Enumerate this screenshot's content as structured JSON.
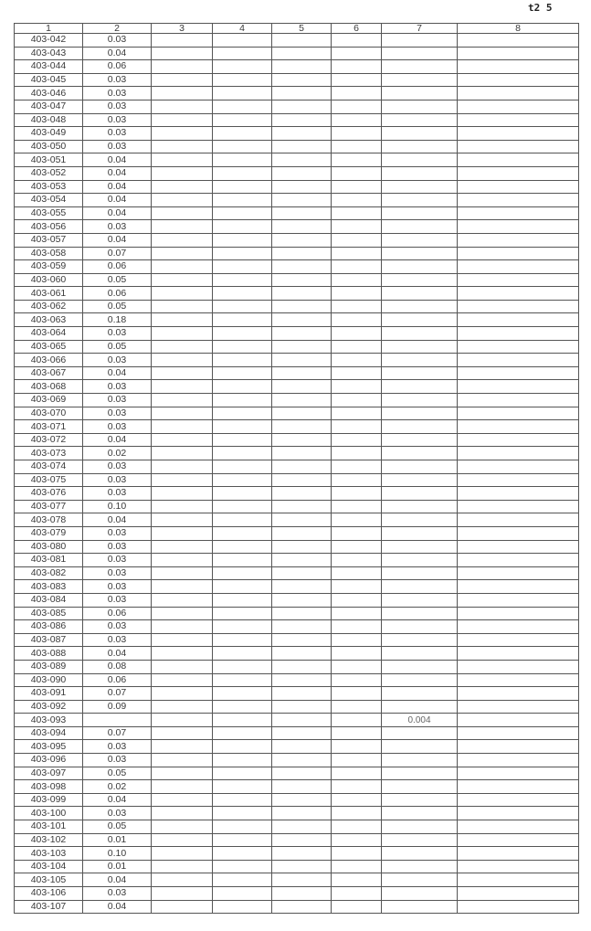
{
  "page_mark": "t2 5",
  "columns": [
    "1",
    "2",
    "3",
    "4",
    "5",
    "6",
    "7",
    "8"
  ],
  "rows": [
    [
      "403-042",
      "0.03",
      ""
    ],
    [
      "403-043",
      "0.04",
      ""
    ],
    [
      "403-044",
      "0.06",
      ""
    ],
    [
      "403-045",
      "0.03",
      ""
    ],
    [
      "403-046",
      "0.03",
      ""
    ],
    [
      "403-047",
      "0.03",
      ""
    ],
    [
      "403-048",
      "0.03",
      ""
    ],
    [
      "403-049",
      "0.03",
      ""
    ],
    [
      "403-050",
      "0.03",
      ""
    ],
    [
      "403-051",
      "0.04",
      ""
    ],
    [
      "403-052",
      "0.04",
      ""
    ],
    [
      "403-053",
      "0.04",
      ""
    ],
    [
      "403-054",
      "0.04",
      ""
    ],
    [
      "403-055",
      "0.04",
      ""
    ],
    [
      "403-056",
      "0.03",
      ""
    ],
    [
      "403-057",
      "0.04",
      ""
    ],
    [
      "403-058",
      "0.07",
      ""
    ],
    [
      "403-059",
      "0.06",
      ""
    ],
    [
      "403-060",
      "0.05",
      ""
    ],
    [
      "403-061",
      "0.06",
      ""
    ],
    [
      "403-062",
      "0.05",
      ""
    ],
    [
      "403-063",
      "0.18",
      ""
    ],
    [
      "403-064",
      "0.03",
      ""
    ],
    [
      "403-065",
      "0.05",
      ""
    ],
    [
      "403-066",
      "0.03",
      ""
    ],
    [
      "403-067",
      "0.04",
      ""
    ],
    [
      "403-068",
      "0.03",
      ""
    ],
    [
      "403-069",
      "0.03",
      ""
    ],
    [
      "403-070",
      "0.03",
      ""
    ],
    [
      "403-071",
      "0.03",
      ""
    ],
    [
      "403-072",
      "0.04",
      ""
    ],
    [
      "403-073",
      "0.02",
      ""
    ],
    [
      "403-074",
      "0.03",
      ""
    ],
    [
      "403-075",
      "0.03",
      ""
    ],
    [
      "403-076",
      "0.03",
      ""
    ],
    [
      "403-077",
      "0.10",
      ""
    ],
    [
      "403-078",
      "0.04",
      ""
    ],
    [
      "403-079",
      "0.03",
      ""
    ],
    [
      "403-080",
      "0.03",
      ""
    ],
    [
      "403-081",
      "0.03",
      ""
    ],
    [
      "403-082",
      "0.03",
      ""
    ],
    [
      "403-083",
      "0.03",
      ""
    ],
    [
      "403-084",
      "0.03",
      ""
    ],
    [
      "403-085",
      "0.06",
      ""
    ],
    [
      "403-086",
      "0.03",
      ""
    ],
    [
      "403-087",
      "0.03",
      ""
    ],
    [
      "403-088",
      "0.04",
      ""
    ],
    [
      "403-089",
      "0.08",
      ""
    ],
    [
      "403-090",
      "0.06",
      ""
    ],
    [
      "403-091",
      "0.07",
      ""
    ],
    [
      "403-092",
      "0.09",
      ""
    ],
    [
      "403-093",
      "",
      "0.004"
    ],
    [
      "403-094",
      "0.07",
      ""
    ],
    [
      "403-095",
      "0.03",
      ""
    ],
    [
      "403-096",
      "0.03",
      ""
    ],
    [
      "403-097",
      "0.05",
      ""
    ],
    [
      "403-098",
      "0.02",
      ""
    ],
    [
      "403-099",
      "0.04",
      ""
    ],
    [
      "403-100",
      "0.03",
      ""
    ],
    [
      "403-101",
      "0.05",
      ""
    ],
    [
      "403-102",
      "0.01",
      ""
    ],
    [
      "403-103",
      "0.10",
      ""
    ],
    [
      "403-104",
      "0.01",
      ""
    ],
    [
      "403-105",
      "0.04",
      ""
    ],
    [
      "403-106",
      "0.03",
      ""
    ],
    [
      "403-107",
      "0.04",
      ""
    ]
  ]
}
